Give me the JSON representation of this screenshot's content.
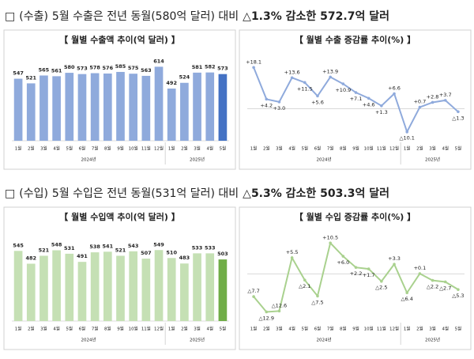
{
  "headings": [
    [
      "□",
      "(수출)",
      "5월 수출은 전년 동월(580억 달러) 대비",
      "△1.3% 감소한 572.7억 달러"
    ],
    [
      "□",
      "(수입)",
      "5월 수입은 전년 동월(531억 달러) 대비",
      "△5.3% 감소한 503.3억 달러"
    ]
  ],
  "chart_data": [
    {
      "type": "bar",
      "title": "【 월별 수출액 추이(억 달러) 】",
      "groups": [
        {
          "label": "2024년",
          "categories": [
            "1월",
            "2월",
            "3월",
            "4월",
            "5월",
            "6월",
            "7월",
            "8월",
            "9월",
            "10월",
            "11월",
            "12월"
          ]
        },
        {
          "label": "2025년",
          "categories": [
            "1월",
            "2월",
            "3월",
            "4월",
            "5월"
          ]
        }
      ],
      "values": [
        547,
        521,
        565,
        561,
        580,
        573,
        578,
        576,
        585,
        575,
        563,
        614,
        492,
        524,
        581,
        582,
        573
      ],
      "colors": [
        "#8faadc",
        "#8faadc",
        "#8faadc",
        "#8faadc",
        "#8faadc",
        "#8faadc",
        "#8faadc",
        "#8faadc",
        "#8faadc",
        "#8faadc",
        "#8faadc",
        "#8faadc",
        "#8faadc",
        "#8faadc",
        "#8faadc",
        "#8faadc",
        "#4472c4"
      ],
      "ylim": [
        200,
        660
      ]
    },
    {
      "type": "line",
      "title": "【 월별 수출 증감률 추이(%) 】",
      "groups": [
        {
          "label": "2024년",
          "categories": [
            "1월",
            "2월",
            "3월",
            "4월",
            "5월",
            "6월",
            "7월",
            "8월",
            "9월",
            "10월",
            "11월",
            "12월"
          ]
        },
        {
          "label": "2025년",
          "categories": [
            "1월",
            "2월",
            "3월",
            "4월",
            "5월"
          ]
        }
      ],
      "values": [
        18.1,
        4.2,
        3.0,
        13.6,
        11.5,
        5.6,
        13.9,
        10.9,
        7.1,
        4.6,
        1.3,
        6.6,
        -10.1,
        0.7,
        2.8,
        3.7,
        -1.3
      ],
      "value_labels": [
        "+18.1",
        "+4.2",
        "+3.0",
        "+13.6",
        "+11.5",
        "+5.6",
        "+13.9",
        "+10.9",
        "+7.1",
        "+4.6",
        "+1.3",
        "+6.6",
        "△10.1",
        "+0.7",
        "+2.8",
        "+3.7",
        "△1.3"
      ],
      "color": "#8faadc",
      "zero_line": true,
      "ylim": [
        -14,
        22
      ]
    },
    {
      "type": "bar",
      "title": "【 월별 수입액 추이(억 달러) 】",
      "groups": [
        {
          "label": "2024년",
          "categories": [
            "1월",
            "2월",
            "3월",
            "4월",
            "5월",
            "6월",
            "7월",
            "8월",
            "9월",
            "10월",
            "11월",
            "12월"
          ]
        },
        {
          "label": "2025년",
          "categories": [
            "1월",
            "2월",
            "3월",
            "4월",
            "5월"
          ]
        }
      ],
      "values": [
        545,
        482,
        521,
        548,
        531,
        491,
        538,
        541,
        521,
        543,
        507,
        549,
        510,
        483,
        533,
        533,
        503
      ],
      "colors": [
        "#c5e0b4",
        "#c5e0b4",
        "#c5e0b4",
        "#c5e0b4",
        "#c5e0b4",
        "#c5e0b4",
        "#c5e0b4",
        "#c5e0b4",
        "#c5e0b4",
        "#c5e0b4",
        "#c5e0b4",
        "#c5e0b4",
        "#c5e0b4",
        "#c5e0b4",
        "#c5e0b4",
        "#c5e0b4",
        "#70ad47"
      ],
      "ylim": [
        200,
        620
      ]
    },
    {
      "type": "line",
      "title": "【 월별 수입 증감률 추이(%) 】",
      "groups": [
        {
          "label": "2024년",
          "categories": [
            "1월",
            "2월",
            "3월",
            "4월",
            "5월",
            "6월",
            "7월",
            "8월",
            "9월",
            "10월",
            "11월",
            "12월"
          ]
        },
        {
          "label": "2025년",
          "categories": [
            "1월",
            "2월",
            "3월",
            "4월",
            "5월"
          ]
        }
      ],
      "values": [
        -7.7,
        -12.9,
        -12.6,
        5.5,
        -2.1,
        -7.5,
        10.5,
        6.0,
        2.2,
        1.7,
        -2.5,
        3.3,
        -6.4,
        0.1,
        -2.2,
        -2.7,
        -5.3
      ],
      "value_labels": [
        "△7.7",
        "△12.9",
        "△12.6",
        "+5.5",
        "△2.1",
        "△7.5",
        "+10.5",
        "+6.0",
        "+2.2",
        "+1.7",
        "△2.5",
        "+3.3",
        "△6.4",
        "+0.1",
        "△2.2",
        "△2.7",
        "△5.3"
      ],
      "color": "#a9d18e",
      "zero_line": true,
      "ylim": [
        -16,
        13
      ]
    }
  ]
}
